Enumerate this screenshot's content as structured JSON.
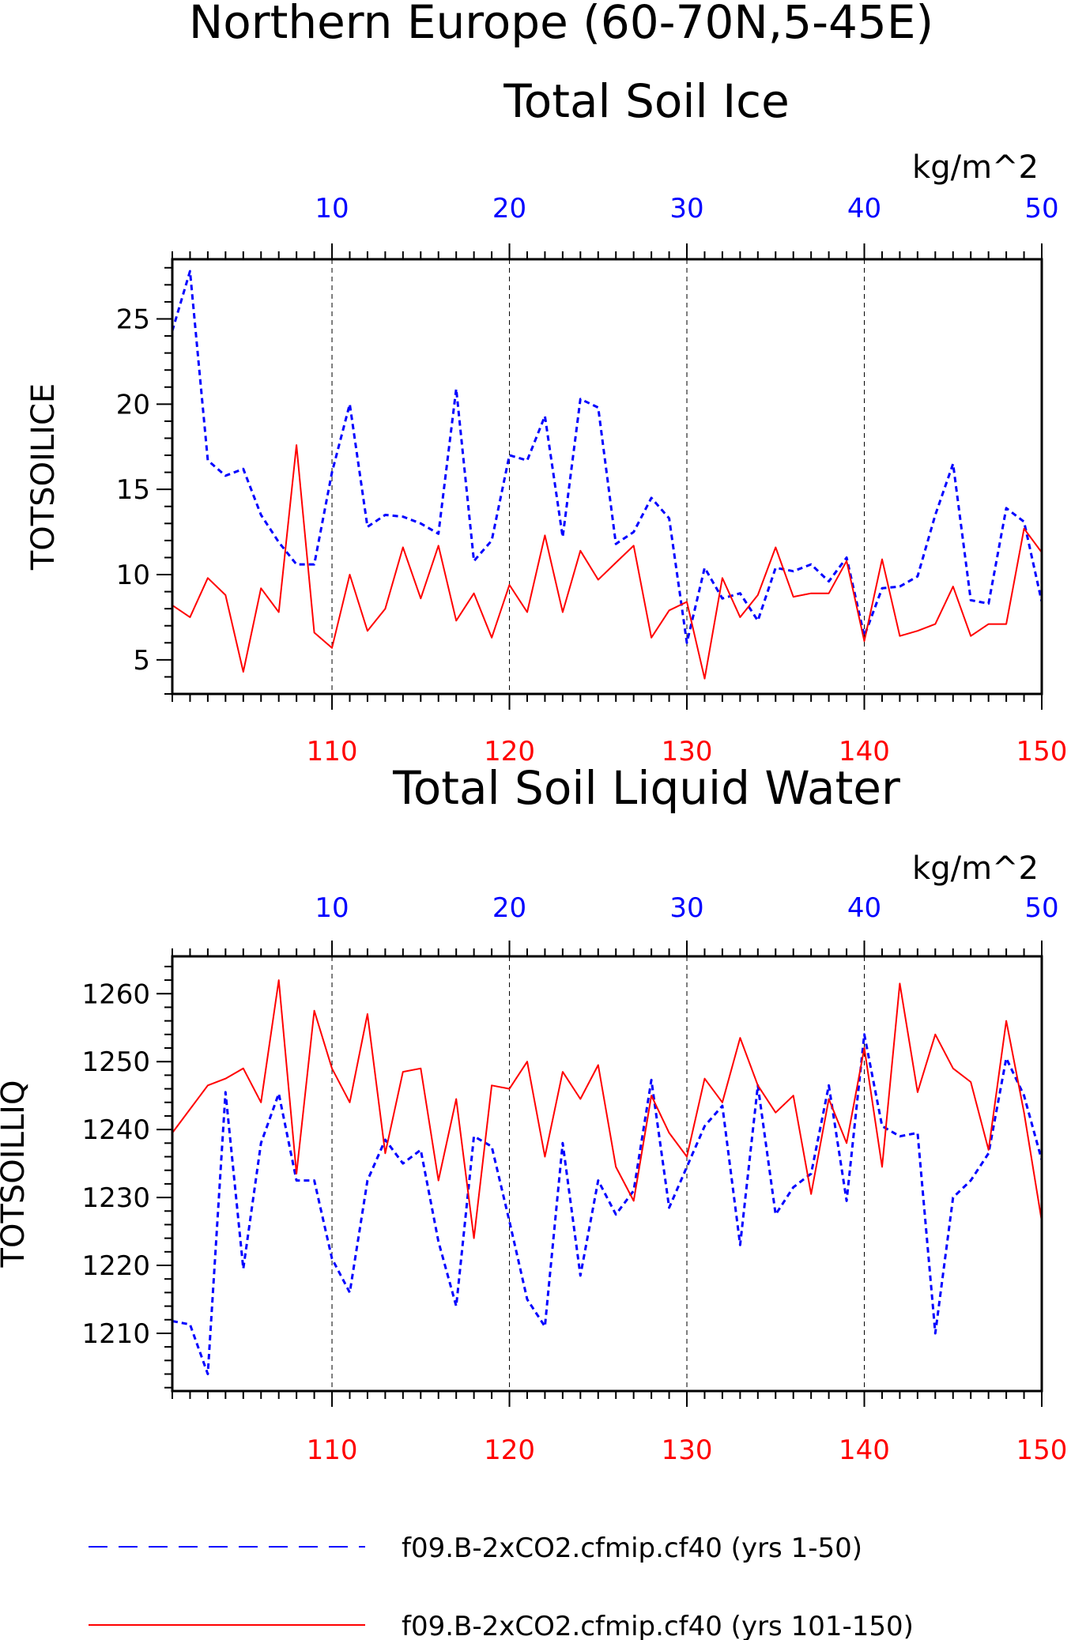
{
  "page": {
    "title_line1": "Northern Europe (60-70N,5-45E)",
    "legend": [
      {
        "label": "f09.B-2xCO2.cfmip.cf40 (yrs 1-50)",
        "color": "#0000ff",
        "style": "dashed"
      },
      {
        "label": "f09.B-2xCO2.cfmip.cf40 (yrs 101-150)",
        "color": "#ff0000",
        "style": "solid"
      }
    ]
  },
  "chart_data": [
    {
      "type": "line",
      "title": "Total Soil Ice",
      "ylabel": "TOTSOILICE",
      "units": "kg/m^2",
      "ylim": [
        3,
        28.5
      ],
      "yticks": [
        5,
        10,
        15,
        20,
        25
      ],
      "x_top": {
        "range": [
          1,
          50
        ],
        "ticks": [
          10,
          20,
          30,
          40,
          50
        ],
        "color": "#0000ff"
      },
      "x_bottom": {
        "range": [
          101,
          150
        ],
        "ticks": [
          110,
          120,
          130,
          140,
          150
        ],
        "color": "#ff0000"
      },
      "gridlines_at_index": [
        10,
        20,
        30,
        40
      ],
      "series": [
        {
          "name": "f09.B-2xCO2.cfmip.cf40 (yrs 1-50)",
          "color": "#0000ff",
          "style": "dashed",
          "values": [
            24.3,
            27.8,
            16.7,
            15.8,
            16.2,
            13.5,
            11.9,
            10.6,
            10.6,
            16.0,
            20.0,
            12.8,
            13.5,
            13.4,
            13.0,
            12.4,
            20.9,
            10.8,
            12.0,
            17.0,
            16.7,
            19.3,
            12.2,
            20.3,
            19.8,
            11.8,
            12.5,
            14.5,
            13.3,
            6.0,
            10.4,
            8.6,
            8.9,
            7.3,
            10.4,
            10.2,
            10.6,
            9.6,
            11.0,
            6.4,
            9.2,
            9.3,
            9.9,
            13.5,
            16.5,
            8.5,
            8.3,
            13.9,
            13.1,
            8.4
          ]
        },
        {
          "name": "f09.B-2xCO2.cfmip.cf40 (yrs 101-150)",
          "color": "#ff0000",
          "style": "solid",
          "values": [
            8.2,
            7.5,
            9.8,
            8.8,
            4.3,
            9.2,
            7.8,
            17.6,
            6.6,
            5.7,
            10.0,
            6.7,
            8.0,
            11.6,
            8.6,
            11.7,
            7.3,
            8.9,
            6.3,
            9.4,
            7.8,
            12.3,
            7.8,
            11.4,
            9.7,
            10.7,
            11.7,
            6.3,
            7.9,
            8.4,
            3.9,
            9.8,
            7.5,
            8.8,
            11.6,
            8.7,
            8.9,
            8.9,
            10.8,
            6.1,
            10.9,
            6.4,
            6.7,
            7.1,
            9.3,
            6.4,
            7.1,
            7.1,
            12.7,
            11.3
          ]
        }
      ]
    },
    {
      "type": "line",
      "title": "Total Soil Liquid Water",
      "ylabel": "TOTSOILLIQ",
      "units": "kg/m^2",
      "ylim": [
        1201.5,
        1265.5
      ],
      "yticks": [
        1210,
        1220,
        1230,
        1240,
        1250,
        1260
      ],
      "x_top": {
        "range": [
          1,
          50
        ],
        "ticks": [
          10,
          20,
          30,
          40,
          50
        ],
        "color": "#0000ff"
      },
      "x_bottom": {
        "range": [
          101,
          150
        ],
        "ticks": [
          110,
          120,
          130,
          140,
          150
        ],
        "color": "#ff0000"
      },
      "gridlines_at_index": [
        10,
        20,
        30,
        40
      ],
      "series": [
        {
          "name": "f09.B-2xCO2.cfmip.cf40 (yrs 1-50)",
          "color": "#0000ff",
          "style": "dashed",
          "values": [
            1211.8,
            1211.3,
            1204.0,
            1245.5,
            1219.5,
            1238.0,
            1245.3,
            1232.5,
            1232.5,
            1221.0,
            1216.0,
            1232.5,
            1238.5,
            1235.0,
            1237.0,
            1223.5,
            1214.0,
            1239.0,
            1237.5,
            1226.5,
            1215.0,
            1211.0,
            1238.0,
            1218.5,
            1232.5,
            1227.5,
            1231.0,
            1247.3,
            1228.5,
            1234.5,
            1240.5,
            1243.5,
            1223.0,
            1246.5,
            1227.5,
            1231.5,
            1233.5,
            1246.5,
            1229.5,
            1254.0,
            1240.5,
            1239.0,
            1239.5,
            1210.0,
            1230.0,
            1232.5,
            1236.5,
            1250.5,
            1245.0,
            1235.5
          ]
        },
        {
          "name": "f09.B-2xCO2.cfmip.cf40 (yrs 101-150)",
          "color": "#ff0000",
          "style": "solid",
          "values": [
            1239.5,
            1243.0,
            1246.5,
            1247.5,
            1249.0,
            1244.0,
            1262.0,
            1233.5,
            1257.5,
            1249.0,
            1244.0,
            1257.0,
            1236.5,
            1248.5,
            1249.0,
            1232.5,
            1244.5,
            1224.0,
            1246.5,
            1246.0,
            1250.0,
            1236.0,
            1248.5,
            1244.5,
            1249.5,
            1234.5,
            1229.5,
            1245.0,
            1239.5,
            1236.0,
            1247.5,
            1244.0,
            1253.5,
            1246.5,
            1242.5,
            1245.0,
            1230.5,
            1244.5,
            1238.0,
            1252.0,
            1234.5,
            1261.5,
            1245.5,
            1254.0,
            1249.0,
            1247.0,
            1237.0,
            1256.0,
            1242.5,
            1226.5
          ]
        }
      ]
    }
  ]
}
